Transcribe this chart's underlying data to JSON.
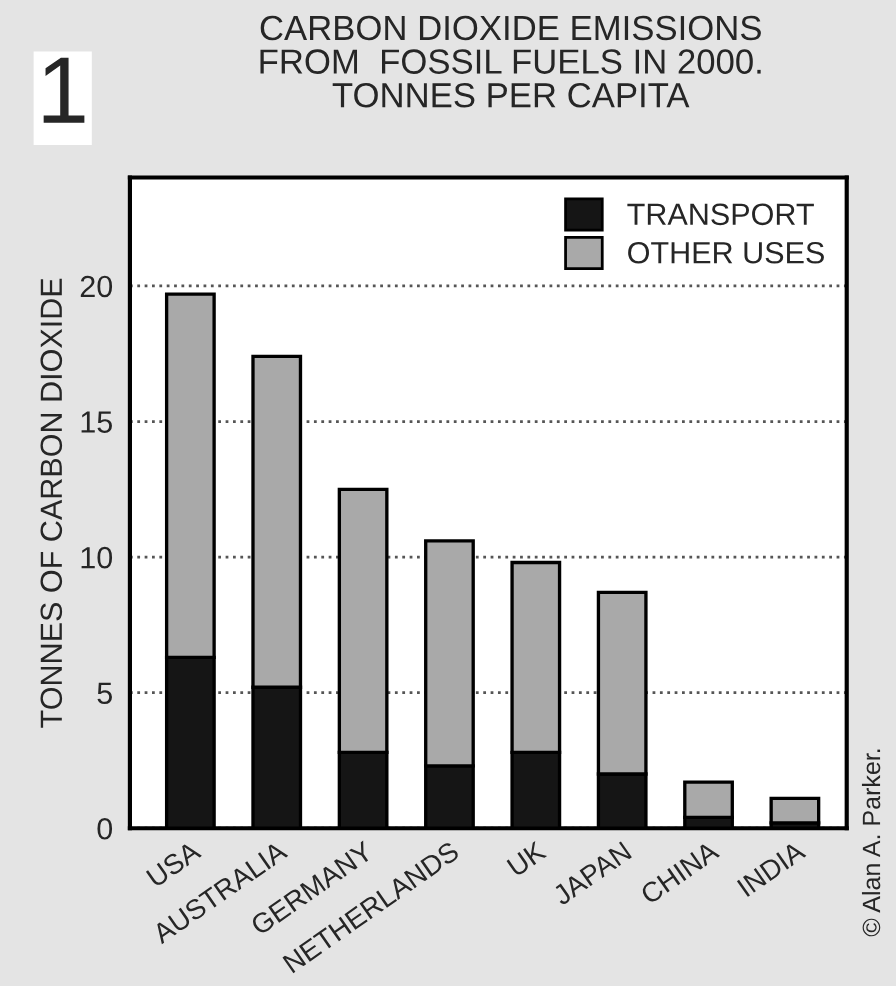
{
  "chart_data": {
    "type": "bar",
    "title": "CARBON DIOXIDE EMISSIONS\nFROM  FOSSIL FUELS IN 2000.\nTONNES PER CAPITA",
    "ylabel": "TONNES OF CARBON DIOXIDE",
    "categories": [
      "USA",
      "AUSTRALIA",
      "GERMANY",
      "NETHERLANDS",
      "UK",
      "JAPAN",
      "CHINA",
      "INDIA"
    ],
    "stacked": true,
    "series": [
      {
        "name": "TRANSPORT",
        "color": "#151515",
        "values": [
          6.3,
          5.2,
          2.8,
          2.3,
          2.8,
          2.0,
          0.4,
          0.2
        ]
      },
      {
        "name": "OTHER USES",
        "color": "#a9a9a9",
        "values": [
          13.4,
          12.2,
          9.7,
          8.3,
          7.0,
          6.7,
          1.3,
          0.9
        ]
      }
    ],
    "ylim": [
      0,
      24
    ],
    "yticks": [
      0,
      5,
      10,
      15,
      20
    ],
    "grid": "y",
    "legend": "top right",
    "annotations": [
      "1",
      "© Alan A. Parker."
    ]
  }
}
